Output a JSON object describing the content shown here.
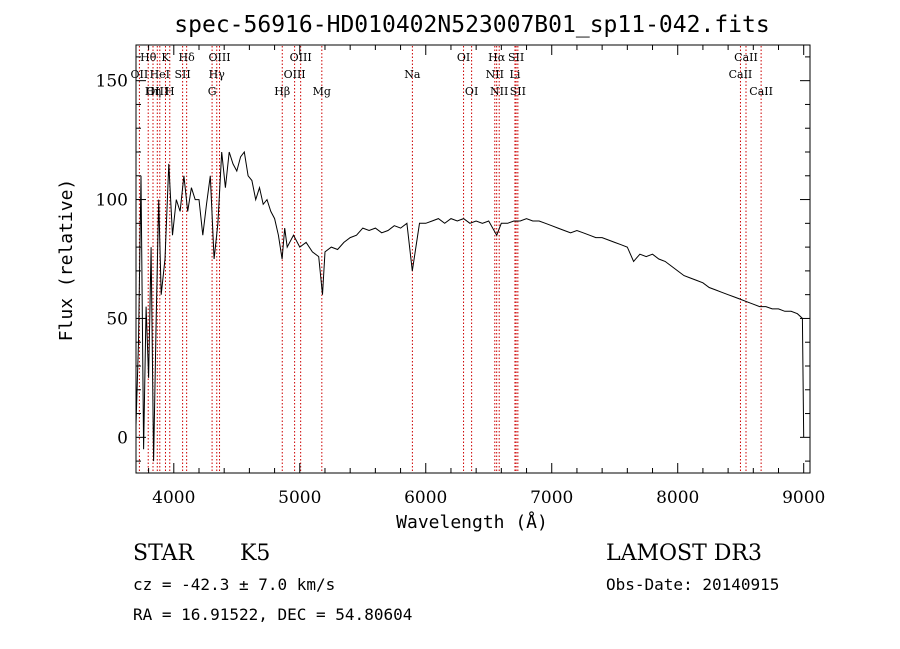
{
  "chart_data": {
    "type": "line",
    "title": "spec-56916-HD010402N523007B01_sp11-042.fits",
    "xlabel": "Wavelength (Å)",
    "ylabel": "Flux (relative)",
    "xlim": [
      3700,
      9050
    ],
    "ylim": [
      -15,
      165
    ],
    "x_ticks": [
      4000,
      5000,
      6000,
      7000,
      8000,
      9000
    ],
    "y_ticks": [
      0,
      50,
      100,
      150
    ],
    "grid": false,
    "line_color": "#000000",
    "marker_color": "#cc0000",
    "series": [
      {
        "x": [
          3700,
          3720,
          3740,
          3760,
          3780,
          3800,
          3820,
          3840,
          3860,
          3880,
          3900,
          3930,
          3960,
          3990,
          4020,
          4050,
          4080,
          4110,
          4140,
          4170,
          4200,
          4230,
          4260,
          4290,
          4320,
          4350,
          4380,
          4410,
          4440,
          4470,
          4500,
          4530,
          4560,
          4590,
          4620,
          4650,
          4680,
          4710,
          4740,
          4770,
          4800,
          4830,
          4860,
          4880,
          4900,
          4950,
          5000,
          5050,
          5100,
          5150,
          5180,
          5200,
          5250,
          5300,
          5350,
          5400,
          5450,
          5500,
          5550,
          5600,
          5650,
          5700,
          5750,
          5800,
          5850,
          5893,
          5950,
          6000,
          6050,
          6100,
          6150,
          6200,
          6250,
          6300,
          6350,
          6400,
          6450,
          6500,
          6563,
          6600,
          6650,
          6700,
          6750,
          6800,
          6850,
          6900,
          6950,
          7000,
          7050,
          7100,
          7150,
          7200,
          7250,
          7300,
          7350,
          7400,
          7450,
          7500,
          7550,
          7600,
          7650,
          7700,
          7750,
          7800,
          7850,
          7900,
          7950,
          8000,
          8050,
          8100,
          8150,
          8200,
          8250,
          8300,
          8350,
          8400,
          8450,
          8500,
          8550,
          8600,
          8650,
          8700,
          8750,
          8800,
          8850,
          8900,
          8950,
          8990,
          9000
        ],
        "values": [
          5,
          40,
          110,
          -5,
          55,
          25,
          80,
          -10,
          50,
          100,
          60,
          75,
          115,
          85,
          100,
          95,
          110,
          95,
          105,
          100,
          100,
          85,
          98,
          110,
          75,
          90,
          120,
          105,
          120,
          115,
          112,
          118,
          120,
          110,
          108,
          100,
          105,
          98,
          100,
          95,
          92,
          85,
          75,
          88,
          80,
          85,
          80,
          82,
          78,
          76,
          60,
          78,
          80,
          79,
          82,
          84,
          85,
          88,
          87,
          88,
          86,
          87,
          89,
          88,
          90,
          70,
          90,
          90,
          91,
          92,
          90,
          92,
          91,
          92,
          90,
          91,
          90,
          91,
          85,
          90,
          90,
          91,
          91,
          92,
          91,
          91,
          90,
          89,
          88,
          87,
          86,
          87,
          86,
          85,
          84,
          84,
          83,
          82,
          81,
          80,
          74,
          77,
          76,
          77,
          75,
          74,
          72,
          70,
          68,
          67,
          66,
          65,
          63,
          62,
          61,
          60,
          59,
          58,
          57,
          56,
          55,
          55,
          54,
          54,
          53,
          53,
          52,
          50,
          0
        ]
      }
    ],
    "spectral_lines": [
      {
        "label": "OII",
        "x": 3727,
        "row": 1
      },
      {
        "label": "Hθ",
        "x": 3797,
        "row": 0
      },
      {
        "label": "OIII",
        "x": 3869,
        "row": 2
      },
      {
        "label": "HeI",
        "x": 3889,
        "row": 1
      },
      {
        "label": "Hη",
        "x": 3835,
        "row": 2
      },
      {
        "label": "K",
        "x": 3934,
        "row": 0
      },
      {
        "label": "H",
        "x": 3968,
        "row": 2
      },
      {
        "label": "SII",
        "x": 4070,
        "row": 1
      },
      {
        "label": "Hδ",
        "x": 4102,
        "row": 0
      },
      {
        "label": "G",
        "x": 4304,
        "row": 2
      },
      {
        "label": "Hγ",
        "x": 4341,
        "row": 1
      },
      {
        "label": "OIII",
        "x": 4363,
        "row": 0
      },
      {
        "label": "Hβ",
        "x": 4861,
        "row": 2
      },
      {
        "label": "OIII",
        "x": 4959,
        "row": 1
      },
      {
        "label": "OIII",
        "x": 5007,
        "row": 0
      },
      {
        "label": "Mg",
        "x": 5175,
        "row": 2
      },
      {
        "label": "Na",
        "x": 5894,
        "row": 1
      },
      {
        "label": "OI",
        "x": 6300,
        "row": 0
      },
      {
        "label": "OI",
        "x": 6364,
        "row": 2
      },
      {
        "label": "NII",
        "x": 6548,
        "row": 1
      },
      {
        "label": "Hα",
        "x": 6563,
        "row": 0
      },
      {
        "label": "NII",
        "x": 6583,
        "row": 2
      },
      {
        "label": "Li",
        "x": 6708,
        "row": 1
      },
      {
        "label": "SII",
        "x": 6717,
        "row": 0
      },
      {
        "label": "SII",
        "x": 6731,
        "row": 2
      },
      {
        "label": "CaII",
        "x": 8498,
        "row": 1
      },
      {
        "label": "CaII",
        "x": 8542,
        "row": 0
      },
      {
        "label": "CaII",
        "x": 8662,
        "row": 2
      }
    ]
  },
  "info": {
    "object_class": "STAR",
    "subclass": "K5",
    "survey": "LAMOST DR3",
    "cz": "cz = -42.3 ± 7.0 km/s",
    "obs_date": "Obs-Date: 20140915",
    "coords": "RA =  16.91522, DEC =  54.80604"
  }
}
